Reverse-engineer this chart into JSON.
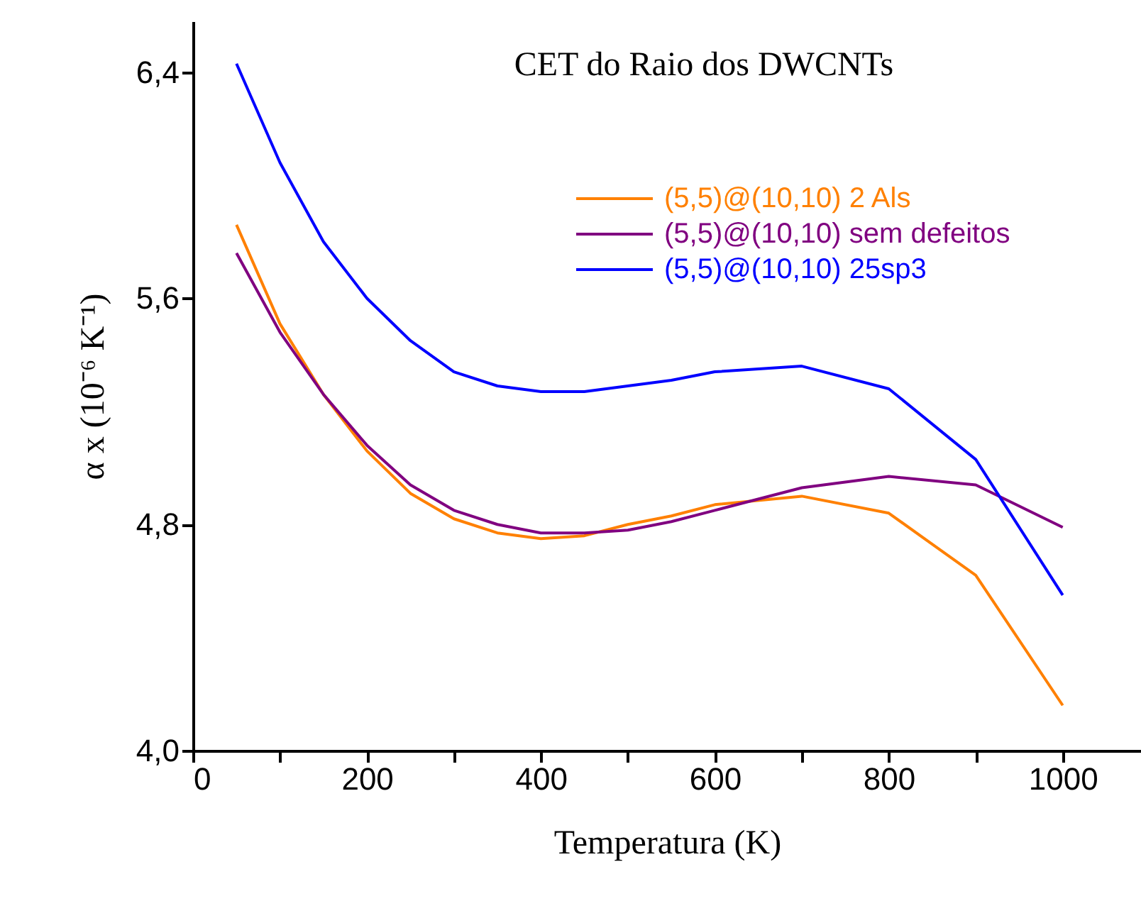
{
  "chart_data": {
    "type": "line",
    "title": "CET do Raio dos DWCNTs",
    "xlabel": "Temperatura (K)",
    "ylabel": "α x (10⁻⁶ K⁻¹)",
    "x": [
      50,
      100,
      150,
      200,
      250,
      300,
      350,
      400,
      450,
      500,
      550,
      600,
      700,
      800,
      900,
      1000
    ],
    "series": [
      {
        "name": "(5,5)@(10,10) 2 Als",
        "color": "#ff8000",
        "values": [
          5.86,
          5.51,
          5.26,
          5.06,
          4.91,
          4.82,
          4.77,
          4.75,
          4.76,
          4.8,
          4.83,
          4.87,
          4.9,
          4.84,
          4.62,
          4.16
        ]
      },
      {
        "name": "(5,5)@(10,10) sem defeitos",
        "color": "#800080",
        "values": [
          5.76,
          5.48,
          5.26,
          5.08,
          4.94,
          4.85,
          4.8,
          4.77,
          4.77,
          4.78,
          4.81,
          4.85,
          4.93,
          4.97,
          4.94,
          4.79
        ]
      },
      {
        "name": "(5,5)@(10,10) 25sp3",
        "color": "#0000ff",
        "values": [
          6.43,
          6.08,
          5.8,
          5.6,
          5.45,
          5.34,
          5.29,
          5.27,
          5.27,
          5.29,
          5.31,
          5.34,
          5.36,
          5.28,
          5.03,
          4.55
        ]
      }
    ],
    "xlim": [
      0,
      1090
    ],
    "xticks": [
      0,
      {
        "value": 100,
        "label": null
      },
      200,
      {
        "value": 300,
        "label": null
      },
      400,
      {
        "value": 500,
        "label": null
      },
      600,
      {
        "value": 700,
        "label": null
      },
      800,
      {
        "value": 900,
        "label": null
      },
      1000
    ],
    "ylim": [
      4.0,
      6.58
    ],
    "yticks": [
      {
        "value": 4.0,
        "label": "4,0"
      },
      {
        "value": 4.8,
        "label": "4,8"
      },
      {
        "value": 5.6,
        "label": "5,6"
      },
      {
        "value": 6.4,
        "label": "6,4"
      }
    ],
    "legend": "top right",
    "grid": false,
    "marker": "none",
    "line_style": "solid"
  }
}
